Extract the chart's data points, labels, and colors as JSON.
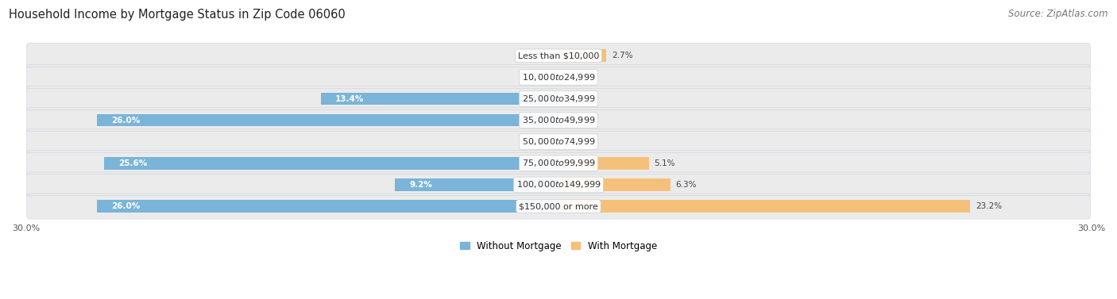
{
  "title": "Household Income by Mortgage Status in Zip Code 06060",
  "source": "Source: ZipAtlas.com",
  "categories": [
    "Less than $10,000",
    "$10,000 to $24,999",
    "$25,000 to $34,999",
    "$35,000 to $49,999",
    "$50,000 to $74,999",
    "$75,000 to $99,999",
    "$100,000 to $149,999",
    "$150,000 or more"
  ],
  "without_mortgage": [
    0.0,
    0.0,
    13.4,
    26.0,
    0.0,
    25.6,
    9.2,
    26.0
  ],
  "with_mortgage": [
    2.7,
    0.0,
    0.0,
    0.0,
    0.0,
    5.1,
    6.3,
    23.2
  ],
  "color_without": "#7ab4d8",
  "color_with": "#f5c07a",
  "bg_row_color": "#e8edf2",
  "bg_row_color2": "#f5f6f8",
  "xlim": 30.0,
  "title_fontsize": 10.5,
  "source_fontsize": 8.5,
  "label_fontsize": 8,
  "bar_label_fontsize": 7.5,
  "legend_fontsize": 8.5,
  "axis_label_fontsize": 8
}
